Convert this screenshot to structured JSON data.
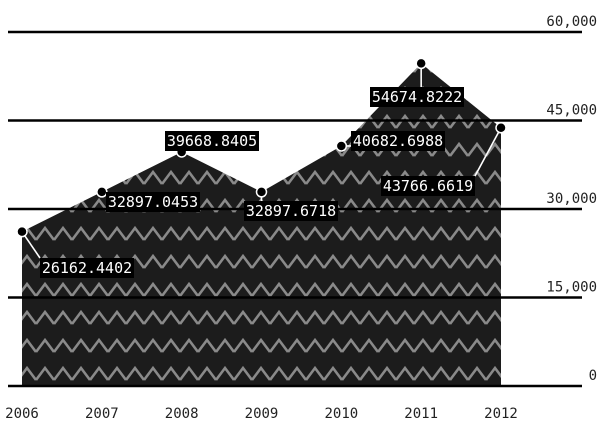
{
  "chart_data": {
    "type": "area",
    "categories": [
      "2006",
      "2007",
      "2008",
      "2009",
      "2010",
      "2011",
      "2012"
    ],
    "series": [
      {
        "values": [
          26162.4402,
          32897.0453,
          39668.8405,
          32897.6718,
          40682.6988,
          54674.8222,
          43766.6619
        ]
      }
    ],
    "data_labels": [
      "26162.4402",
      "32897.0453",
      "39668.8405",
      "32897.6718",
      "40682.6988",
      "54674.8222",
      "43766.6619"
    ],
    "y_ticks": [
      0,
      15000,
      30000,
      45000,
      60000
    ],
    "y_tick_labels": [
      "0",
      "15,000",
      "30,000",
      "45,000",
      "60,000"
    ],
    "ylim": [
      0,
      60000
    ],
    "title": "",
    "xlabel": "",
    "ylabel": "",
    "grid": true,
    "y_axis_position": "right",
    "colors": {
      "fill_dark": "#1c1c1c",
      "zigzag": "#8a8a8a",
      "grid": "#000000",
      "label_bg": "#000000",
      "label_text": "#ffffff"
    }
  }
}
